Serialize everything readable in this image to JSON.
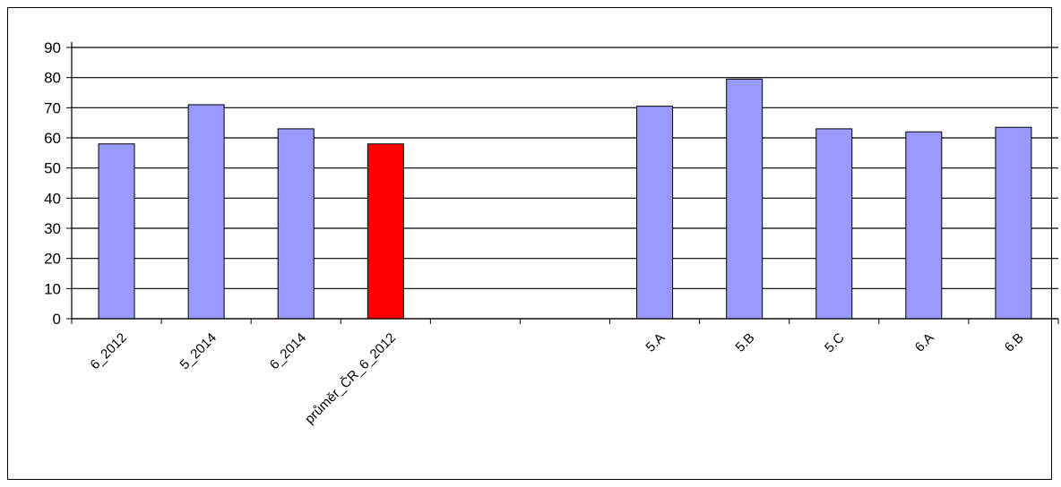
{
  "chart_data": {
    "type": "bar",
    "categories": [
      "6_2012",
      "5_2014",
      "6_2014",
      "průměr_ČR_6_2012",
      "",
      "",
      "5.A",
      "5.B",
      "5.C",
      "6.A",
      "6.B"
    ],
    "values": [
      58,
      71,
      63,
      58,
      null,
      null,
      70.5,
      79.5,
      63,
      62,
      63.5
    ],
    "highlight": [
      false,
      false,
      false,
      true,
      false,
      false,
      false,
      false,
      false,
      false,
      false
    ],
    "ylim": [
      0,
      90
    ],
    "yticks": [
      0,
      10,
      20,
      30,
      40,
      50,
      60,
      70,
      80,
      90
    ],
    "ytick_labels": [
      "0",
      "10",
      "20",
      "30",
      "40",
      "50",
      "60",
      "70",
      "80",
      "90"
    ],
    "grid": true,
    "legend": "none",
    "colors": {
      "bar": "#9999ff",
      "highlight": "#ff0000",
      "grid": "#000000",
      "frame": "#000000"
    }
  }
}
